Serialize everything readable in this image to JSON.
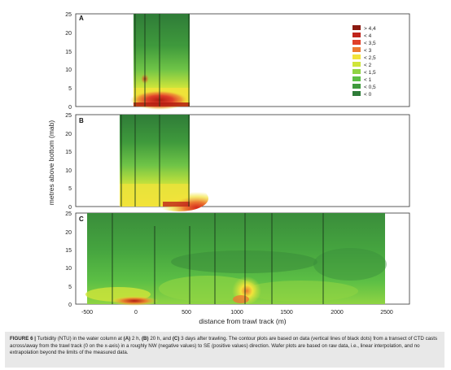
{
  "figure": {
    "y_axis_label": "metres above bottom (mab)",
    "x_axis_label": "distance from trawl track (m)",
    "x_ticks": [
      "-500",
      "0",
      "500",
      "1000",
      "1500",
      "2000",
      "2500"
    ],
    "y_ticks": [
      "0",
      "5",
      "10",
      "15",
      "20",
      "25"
    ],
    "legend": [
      "> 4,4",
      "< 4",
      "< 3,5",
      "< 3",
      "< 2,5",
      "< 2",
      "< 1,5",
      "< 1",
      "< 0,5",
      "< 0"
    ],
    "legend_colors": [
      "#8b1a10",
      "#c0241a",
      "#e0402a",
      "#ec7a32",
      "#f2e33a",
      "#cfe53a",
      "#8fd443",
      "#5cbf45",
      "#3f9a3c",
      "#2f7c38"
    ]
  },
  "panels": [
    {
      "label": "A"
    },
    {
      "label": "B"
    },
    {
      "label": "C"
    }
  ],
  "caption": {
    "lead": "FIGURE 6 |",
    "p1": " Turbidity (NTU) in the water column at ",
    "a": "(A)",
    "p2": " 2 h, ",
    "b": "(B)",
    "p3": " 20 h, and ",
    "c": "(C)",
    "p4": " 3 days after trawling. The contour plots are based on data (vertical lines of black dots) from a transect of CTD casts across/away from the trawl track (0 on the x-axis) in a roughly NW (negative values) to SE (positive values) direction. Wafer plots are based on raw data, i.e., linear interpolation, and no extrapolation beyond the limits of the measured data."
  }
}
